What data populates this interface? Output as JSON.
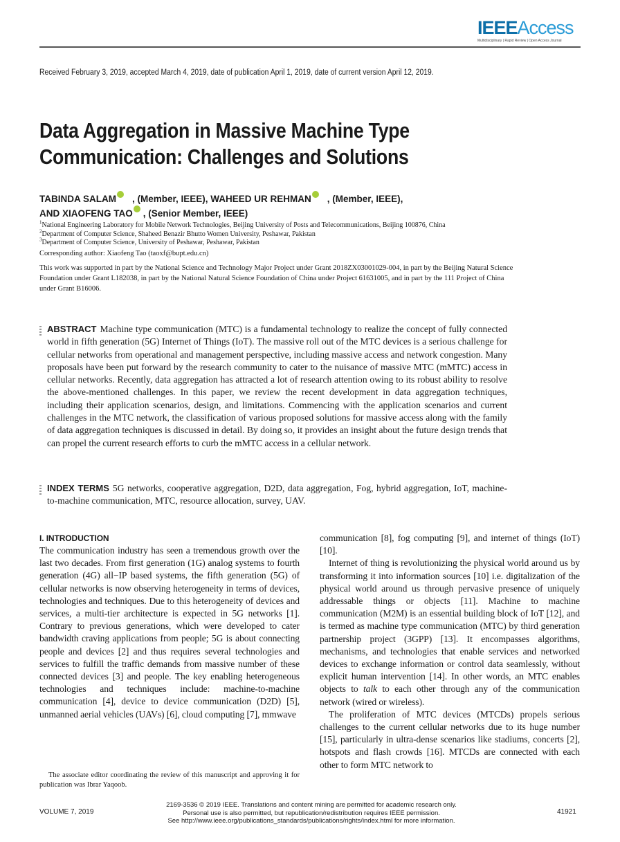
{
  "header": {
    "logo_primary": "IEEE",
    "logo_secondary": "Access",
    "logo_tagline": "Multidisciplinary | Rapid Review | Open Access Journal",
    "brand_color": "#0d6fa8"
  },
  "received": "Received February 3, 2019, accepted March 4, 2019, date of publication April 1, 2019, date of current version April 12, 2019.",
  "title": "Data Aggregation in Massive Machine Type Communication: Challenges and Solutions",
  "authors": [
    {
      "name": "TABINDA SALAM",
      "role": ", (Member, IEEE), "
    },
    {
      "name": "WAHEED UR REHMAN",
      "role": ", (Member, IEEE),"
    },
    {
      "name": "AND XIAOFENG TAO",
      "role": ", (Senior Member, IEEE)"
    }
  ],
  "affiliations": [
    {
      "n": "1",
      "text": "National Engineering Laboratory for Mobile Network Technologies, Beijing University of Posts and Telecommunications, Beijing 100876, China"
    },
    {
      "n": "2",
      "text": "Department of Computer Science, Shaheed Benazir Bhutto Women University, Peshawar, Pakistan"
    },
    {
      "n": "3",
      "text": "Department of Computer Science, University of Peshawar, Peshawar, Pakistan"
    }
  ],
  "corresponding": "Corresponding author: Xiaofeng Tao (taoxf@bupt.edu.cn)",
  "funding": "This work was supported in part by the National Science and Technology Major Project under Grant 2018ZX03001029-004, in part by the Beijing Natural Science Foundation under Grant L182038, in part by the National Natural Science Foundation of China under Project 61631005, and in part by the 111 Project of China under Grant B16006.",
  "abstract": {
    "label": "ABSTRACT",
    "text": "Machine type communication (MTC) is a fundamental technology to realize the concept of fully connected world in fifth generation (5G) Internet of Things (IoT). The massive roll out of the MTC devices is a serious challenge for cellular networks from operational and management perspective, including massive access and network congestion. Many proposals have been put forward by the research community to cater to the nuisance of massive MTC (mMTC) access in cellular networks. Recently, data aggregation has attracted a lot of research attention owing to its robust ability to resolve the above-mentioned challenges. In this paper, we review the recent development in data aggregation techniques, including their application scenarios, design, and limitations. Commencing with the application scenarios and current challenges in the MTC network, the classification of various proposed solutions for massive access along with the family of data aggregation techniques is discussed in detail. By doing so, it provides an insight about the future design trends that can propel the current research efforts to curb the mMTC access in a cellular network."
  },
  "index_terms": {
    "label": "INDEX TERMS",
    "text": "5G networks, cooperative aggregation, D2D, data aggregation, Fog, hybrid aggregation, IoT, machine-to-machine communication, MTC, resource allocation, survey, UAV."
  },
  "intro": {
    "heading": "I. INTRODUCTION",
    "left_p1": "The communication industry has seen a tremendous growth over the last two decades. From first generation (1G) analog systems to fourth generation (4G) all−IP based systems, the fifth generation (5G) of cellular networks is now observing heterogeneity in terms of devices, technologies and techniques. Due to this heterogeneity of devices and services, a multi-tier architecture is expected in 5G networks [1]. Contrary to previous generations, which were developed to cater bandwidth craving applications from people; 5G is about connecting people and devices [2] and thus requires several technologies and services to fulfill the traffic demands from massive number of these connected devices [3] and people. The key enabling heterogeneous technologies and techniques include: machine-to-machine communication [4], device to device communication (D2D) [5], unmanned aerial vehicles (UAVs) [6], cloud computing [7], mmwave",
    "right_p1": "communication [8], fog computing [9], and internet of things (IoT) [10].",
    "right_p2_a": "Internet of thing is revolutionizing the physical world around us by transforming it into information sources [10] i.e. digitalization of the physical world around us through pervasive presence of uniquely addressable things or objects [11]. Machine to machine communication (M2M) is an essential building block of IoT [12], and is termed as machine type communication (MTC) by third generation partnership project (3GPP) [13]. It encompasses algorithms, mechanisms, and technologies that enable services and networked devices to exchange information or control data seamlessly, without explicit human intervention [14]. In other words, an MTC enables objects to ",
    "right_p2_em": "talk",
    "right_p2_b": " to each other through any of the communication network (wired or wireless).",
    "right_p3": "The proliferation of MTC devices (MTCDs) propels serious challenges to the current cellular networks due to its huge number [15], particularly in ultra-dense scenarios like stadiums, concerts [2], hotspots and flash crowds [16]. MTCDs are connected with each other to form MTC network to"
  },
  "footnote": "The associate editor coordinating the review of this manuscript and approving it for publication was Ibrar Yaqoob.",
  "footer": {
    "volume": "VOLUME 7, 2019",
    "license_1": "2169-3536 © 2019 IEEE. Translations and content mining are permitted for academic research only.",
    "license_2": "Personal use is also permitted, but republication/redistribution requires IEEE permission.",
    "license_3": "See http://www.ieee.org/publications_standards/publications/rights/index.html for more information.",
    "page": "41921"
  }
}
